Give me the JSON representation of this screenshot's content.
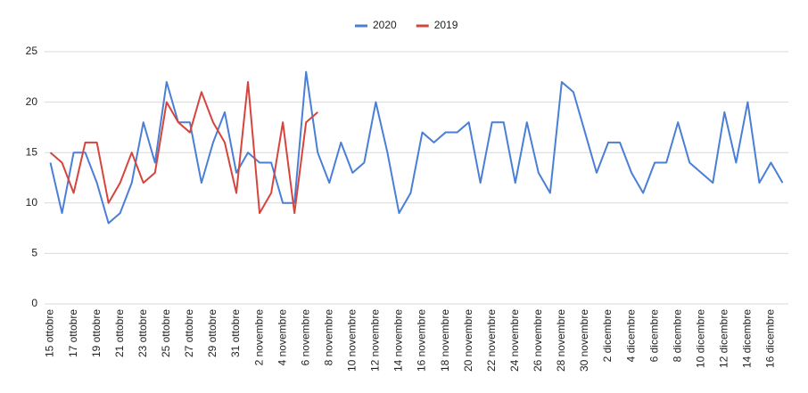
{
  "chart_data": {
    "type": "line",
    "categories": [
      "15 ottobre",
      null,
      "17 ottobre",
      null,
      "19 ottobre",
      null,
      "21 ottobre",
      null,
      "23 ottobre",
      null,
      "25 ottobre",
      null,
      "27 ottobre",
      null,
      "29 ottobre",
      null,
      "31 ottobre",
      null,
      "2 novembre",
      null,
      "4 novembre",
      null,
      "6 novembre",
      null,
      "8 novembre",
      null,
      "10 novembre",
      null,
      "12 novembre",
      null,
      "14 novembre",
      null,
      "16 novembre",
      null,
      "18 novembre",
      null,
      "20 novembre",
      null,
      "22 novembre",
      null,
      "24 novembre",
      null,
      "26 novembre",
      null,
      "28 novembre",
      null,
      "30 novembre",
      null,
      "2 dicembre",
      null,
      "4 dicembre",
      null,
      "6 dicembre",
      null,
      "8 dicembre",
      null,
      "10 dicembre",
      null,
      "12 dicembre",
      null,
      "14 dicembre",
      null,
      "16 dicembre",
      null
    ],
    "series": [
      {
        "name": "2020",
        "color": "#4a7fd6",
        "values": [
          14,
          9,
          15,
          15,
          12,
          8,
          9,
          12,
          18,
          14,
          22,
          18,
          18,
          12,
          16,
          19,
          13,
          15,
          14,
          14,
          10,
          10,
          23,
          15,
          12,
          16,
          13,
          14,
          20,
          15,
          9,
          11,
          17,
          16,
          17,
          17,
          18,
          12,
          18,
          18,
          12,
          18,
          13,
          11,
          22,
          21,
          17,
          13,
          16,
          16,
          13,
          11,
          14,
          14,
          18,
          14,
          13,
          12,
          19,
          14,
          20,
          12,
          14,
          12
        ]
      },
      {
        "name": "2019",
        "color": "#d6453d",
        "values": [
          15,
          14,
          11,
          16,
          16,
          10,
          12,
          15,
          12,
          13,
          20,
          18,
          17,
          21,
          18,
          16,
          11,
          22,
          9,
          11,
          18,
          9,
          18,
          19,
          null,
          null,
          null,
          null,
          null,
          null,
          null,
          null,
          null,
          null,
          null,
          null,
          null,
          null,
          null,
          null,
          null,
          null,
          null,
          null,
          null,
          null,
          null,
          null,
          null,
          null,
          null,
          null,
          null,
          null,
          null,
          null,
          null,
          null,
          null,
          null,
          null,
          null,
          null,
          null
        ]
      }
    ],
    "ylim": [
      0,
      25
    ],
    "yticks": [
      0,
      5,
      10,
      15,
      20,
      25
    ],
    "grid": true,
    "legend": "top"
  }
}
